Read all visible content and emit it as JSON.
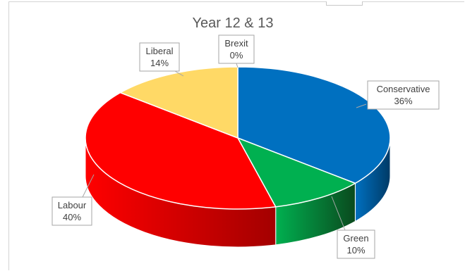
{
  "chart_data": {
    "type": "pie",
    "style": "3d",
    "title": "Year 12 & 13",
    "slices": [
      {
        "name": "Conservative",
        "value": 36,
        "label": "36%",
        "color": "#0070C0",
        "side": "#003A66"
      },
      {
        "name": "Green",
        "value": 10,
        "label": "10%",
        "color": "#00B050",
        "side": "#0A4A1E"
      },
      {
        "name": "Labour",
        "value": 40,
        "label": "40%",
        "color": "#FF0000",
        "side": "#A30000"
      },
      {
        "name": "Liberal",
        "value": 14,
        "label": "14%",
        "color": "#FFD966",
        "side": "#A88A2E"
      },
      {
        "name": "Brexit",
        "value": 0,
        "label": "0%",
        "color": "#7F7F7F",
        "side": "#4D4D4D"
      }
    ]
  }
}
